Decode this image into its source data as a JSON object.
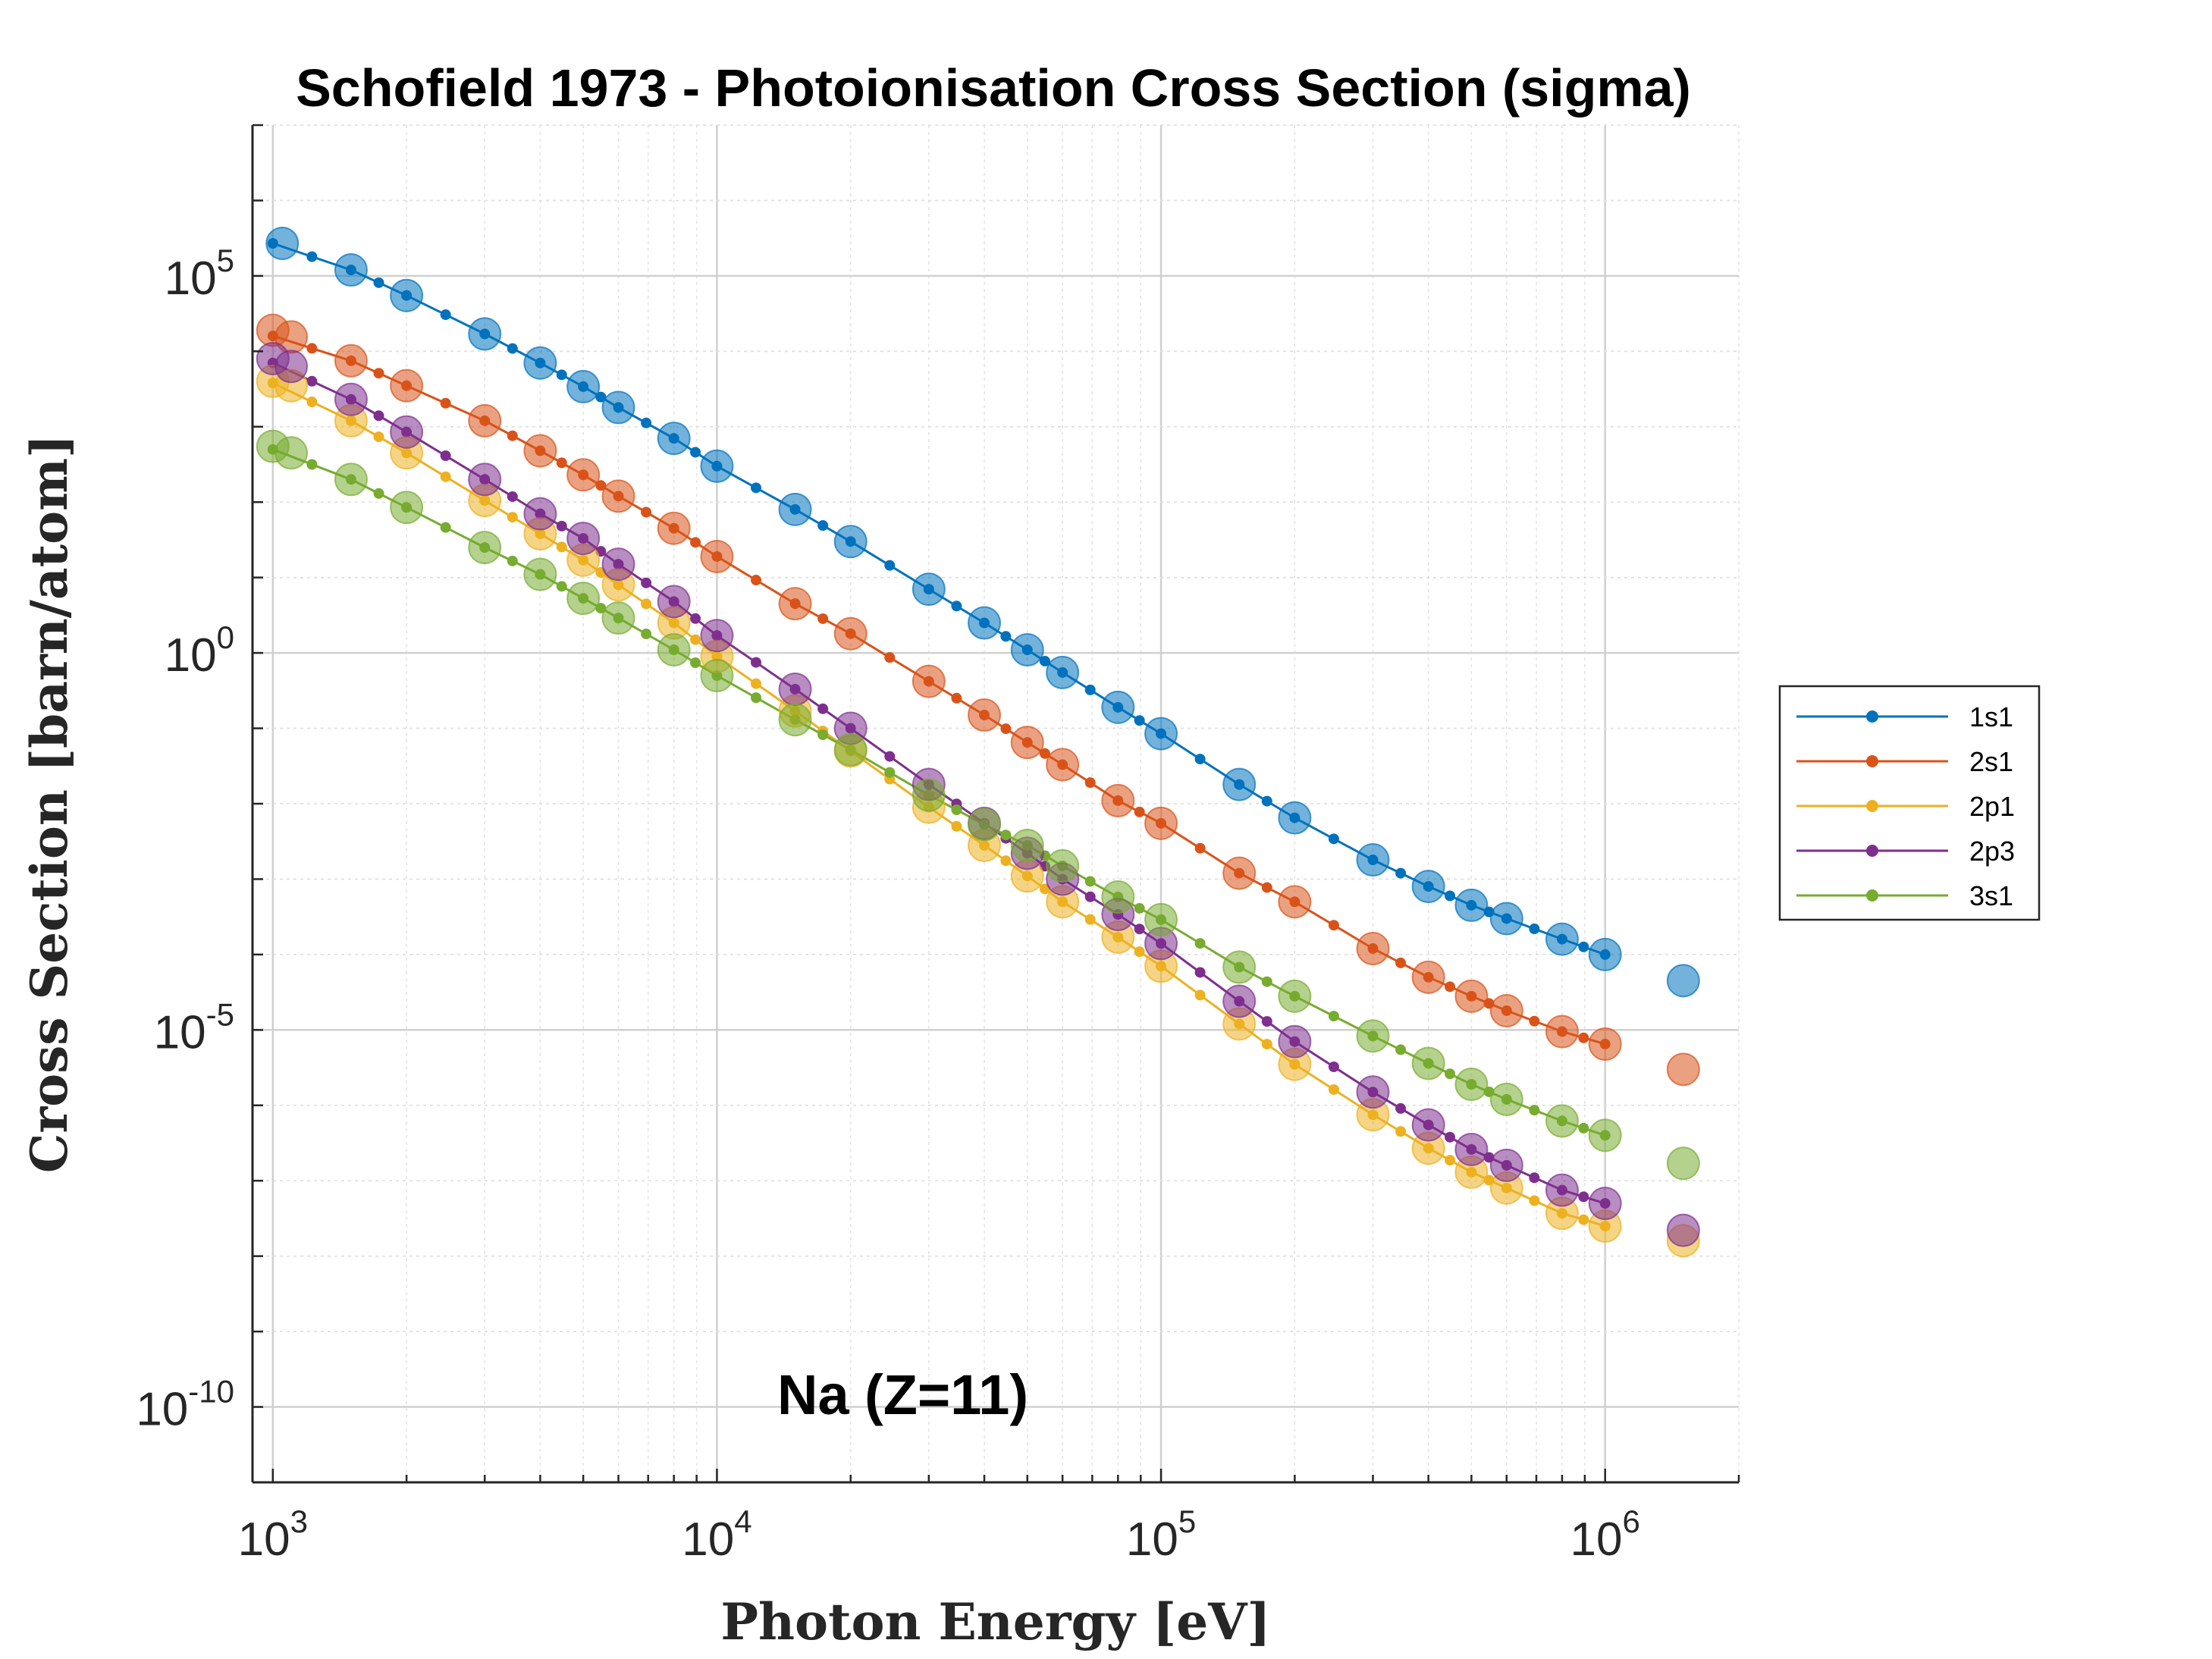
{
  "chart_data": {
    "type": "line",
    "title": "Schofield 1973 - Photoionisation Cross Section (sigma)",
    "xlabel": "Photon Energy [eV]",
    "ylabel": "Cross Section [barn/atom]",
    "xscale": "log",
    "yscale": "log",
    "xlim": [
      900,
      2000000
    ],
    "ylim": [
      1e-11,
      10000000.0
    ],
    "x_ticks": [
      {
        "base": "10",
        "exp": "3",
        "value": 1000
      },
      {
        "base": "10",
        "exp": "4",
        "value": 10000
      },
      {
        "base": "10",
        "exp": "5",
        "value": 100000
      },
      {
        "base": "10",
        "exp": "6",
        "value": 1000000
      }
    ],
    "y_ticks": [
      {
        "base": "10",
        "exp": "5",
        "value": 100000
      },
      {
        "base": "10",
        "exp": "0",
        "value": 1
      },
      {
        "base": "10",
        "exp": "-5",
        "value": 1e-05
      },
      {
        "base": "10",
        "exp": "-10",
        "value": 1e-10
      }
    ],
    "grid": true,
    "minor_grid": true,
    "legend_position": "outside-right",
    "annotation": "Na (Z=11)",
    "series": [
      {
        "name": "1s1",
        "color": "#0072BD",
        "x": [
          1000,
          1500,
          2000,
          3000,
          4000,
          5000,
          6000,
          8000,
          10000,
          15000,
          20000,
          30000,
          40000,
          50000,
          60000,
          80000,
          100000,
          150000,
          200000,
          300000,
          400000,
          500000,
          600000,
          800000,
          1000000
        ],
        "y": [
          270000,
          120000,
          55000,
          17000,
          7000,
          3400,
          1800,
          700,
          300,
          80,
          30,
          7,
          2.5,
          1.1,
          0.55,
          0.19,
          0.085,
          0.018,
          0.0065,
          0.0018,
          0.0008,
          0.00045,
          0.0003,
          0.00016,
          0.0001
        ],
        "markers_x": [
          1050,
          1500,
          2000,
          3000,
          4000,
          5000,
          6000,
          8000,
          10000,
          15000,
          20000,
          30000,
          40000,
          50000,
          60000,
          80000,
          100000,
          150000,
          200000,
          300000,
          400000,
          500000,
          600000,
          800000,
          1000000,
          1500000
        ],
        "markers_y": [
          270000,
          120000,
          55000,
          17000,
          7000,
          3400,
          1800,
          700,
          300,
          80,
          30,
          7,
          2.5,
          1.1,
          0.55,
          0.19,
          0.085,
          0.018,
          0.0065,
          0.0018,
          0.0008,
          0.00045,
          0.0003,
          0.00016,
          0.0001,
          4.5e-05
        ]
      },
      {
        "name": "2s1",
        "color": "#D95319",
        "x": [
          1000,
          1500,
          2000,
          3000,
          4000,
          5000,
          6000,
          8000,
          10000,
          15000,
          20000,
          30000,
          40000,
          50000,
          60000,
          80000,
          100000,
          150000,
          200000,
          300000,
          400000,
          500000,
          600000,
          800000,
          1000000
        ],
        "y": [
          16000,
          7500,
          3500,
          1200,
          480,
          230,
          120,
          45,
          19,
          4.5,
          1.8,
          0.42,
          0.15,
          0.065,
          0.033,
          0.011,
          0.0055,
          0.0012,
          0.0005,
          0.00012,
          5e-05,
          2.8e-05,
          1.8e-05,
          9.5e-06,
          6.5e-06
        ],
        "markers_x": [
          1000,
          1100,
          1500,
          2000,
          3000,
          4000,
          5000,
          6000,
          8000,
          10000,
          15000,
          20000,
          30000,
          40000,
          50000,
          60000,
          80000,
          100000,
          150000,
          200000,
          300000,
          400000,
          500000,
          600000,
          800000,
          1000000,
          1500000
        ],
        "markers_y": [
          19000,
          15500,
          7500,
          3500,
          1200,
          480,
          230,
          120,
          45,
          19,
          4.5,
          1.8,
          0.42,
          0.15,
          0.065,
          0.033,
          0.011,
          0.0055,
          0.0012,
          0.0005,
          0.00012,
          5e-05,
          2.8e-05,
          1.8e-05,
          9.5e-06,
          6.5e-06,
          3e-06
        ]
      },
      {
        "name": "2p1",
        "color": "#EDB120",
        "x": [
          1000,
          1500,
          2000,
          3000,
          4000,
          5000,
          6000,
          8000,
          10000,
          15000,
          20000,
          30000,
          40000,
          50000,
          60000,
          80000,
          100000,
          150000,
          200000,
          300000,
          400000,
          500000,
          600000,
          800000,
          1000000
        ],
        "y": [
          3800,
          1200,
          450,
          105,
          38,
          17,
          8,
          2.5,
          0.9,
          0.17,
          0.05,
          0.009,
          0.0028,
          0.0011,
          0.0005,
          0.00017,
          7e-05,
          1.2e-05,
          3.5e-06,
          7.5e-07,
          2.7e-07,
          1.3e-07,
          8e-08,
          3.7e-08,
          2.5e-08
        ],
        "markers_x": [
          1000,
          1100,
          1500,
          2000,
          3000,
          4000,
          5000,
          6000,
          8000,
          10000,
          15000,
          20000,
          30000,
          40000,
          50000,
          60000,
          80000,
          100000,
          150000,
          200000,
          300000,
          400000,
          500000,
          600000,
          800000,
          1000000,
          1500000
        ],
        "markers_y": [
          4000,
          3500,
          1200,
          450,
          105,
          38,
          17,
          8,
          2.5,
          0.9,
          0.17,
          0.05,
          0.009,
          0.0028,
          0.0011,
          0.0005,
          0.00017,
          7e-05,
          1.2e-05,
          3.5e-06,
          7.5e-07,
          2.7e-07,
          1.3e-07,
          8e-08,
          3.7e-08,
          2.5e-08,
          1.6e-08
        ]
      },
      {
        "name": "2p3",
        "color": "#7E2F8E",
        "x": [
          1000,
          1500,
          2000,
          3000,
          4000,
          5000,
          6000,
          8000,
          10000,
          15000,
          20000,
          30000,
          40000,
          50000,
          60000,
          80000,
          100000,
          150000,
          200000,
          300000,
          400000,
          500000,
          600000,
          800000,
          1000000
        ],
        "y": [
          7000,
          2300,
          850,
          200,
          70,
          33,
          15,
          4.8,
          1.7,
          0.33,
          0.1,
          0.018,
          0.0055,
          0.0022,
          0.001,
          0.00034,
          0.00014,
          2.4e-05,
          7e-06,
          1.5e-06,
          5.5e-07,
          2.6e-07,
          1.6e-07,
          7.5e-08,
          5e-08
        ],
        "markers_x": [
          1000,
          1100,
          1500,
          2000,
          3000,
          4000,
          5000,
          6000,
          8000,
          10000,
          15000,
          20000,
          30000,
          40000,
          50000,
          60000,
          80000,
          100000,
          150000,
          200000,
          300000,
          400000,
          500000,
          600000,
          800000,
          1000000,
          1500000
        ],
        "markers_y": [
          8000,
          6300,
          2300,
          850,
          200,
          70,
          33,
          15,
          4.8,
          1.7,
          0.33,
          0.1,
          0.018,
          0.0055,
          0.0022,
          0.001,
          0.00034,
          0.00014,
          2.4e-05,
          7e-06,
          1.5e-06,
          5.5e-07,
          2.6e-07,
          1.6e-07,
          7.5e-08,
          5e-08,
          2.2e-08
        ]
      },
      {
        "name": "3s1",
        "color": "#77AC30",
        "x": [
          1000,
          1500,
          2000,
          3000,
          4000,
          5000,
          6000,
          8000,
          10000,
          15000,
          20000,
          30000,
          40000,
          50000,
          60000,
          80000,
          100000,
          150000,
          200000,
          300000,
          400000,
          500000,
          600000,
          800000,
          1000000
        ],
        "y": [
          500,
          200,
          85,
          25,
          11,
          5.3,
          2.9,
          1.1,
          0.5,
          0.13,
          0.052,
          0.013,
          0.0053,
          0.0028,
          0.0015,
          0.00058,
          0.00029,
          6.8e-05,
          2.8e-05,
          8.3e-06,
          3.6e-06,
          1.9e-06,
          1.2e-06,
          6.2e-07,
          4e-07
        ],
        "markers_x": [
          1000,
          1100,
          1500,
          2000,
          3000,
          4000,
          5000,
          6000,
          8000,
          10000,
          15000,
          20000,
          30000,
          40000,
          50000,
          60000,
          80000,
          100000,
          150000,
          200000,
          300000,
          400000,
          500000,
          600000,
          800000,
          1000000,
          1500000
        ],
        "markers_y": [
          550,
          450,
          200,
          85,
          25,
          11,
          5.3,
          2.9,
          1.1,
          0.5,
          0.13,
          0.052,
          0.013,
          0.0053,
          0.0028,
          0.0015,
          0.00058,
          0.00029,
          6.8e-05,
          2.8e-05,
          8.3e-06,
          3.6e-06,
          1.9e-06,
          1.2e-06,
          6.2e-07,
          4e-07,
          1.7e-07
        ]
      }
    ]
  }
}
